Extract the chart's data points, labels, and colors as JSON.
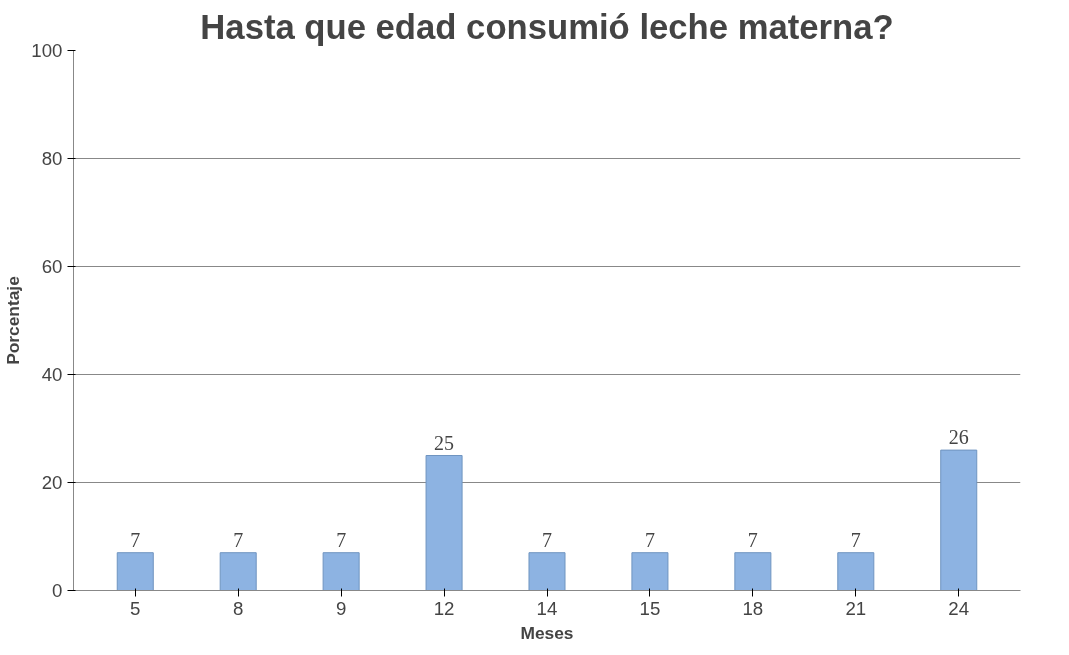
{
  "chart_data": {
    "type": "bar",
    "title": "Hasta que edad consumió leche materna?",
    "xlabel": "Meses",
    "ylabel": "Porcentaje",
    "categories": [
      "5",
      "8",
      "9",
      "12",
      "14",
      "15",
      "18",
      "21",
      "24"
    ],
    "values": [
      7,
      7,
      7,
      25,
      7,
      7,
      7,
      7,
      26
    ],
    "color": "#8db3e2",
    "ylim": [
      0,
      100
    ],
    "yticks": [
      0,
      20,
      40,
      60,
      80,
      100
    ],
    "grid": "y",
    "data_labels": true
  }
}
